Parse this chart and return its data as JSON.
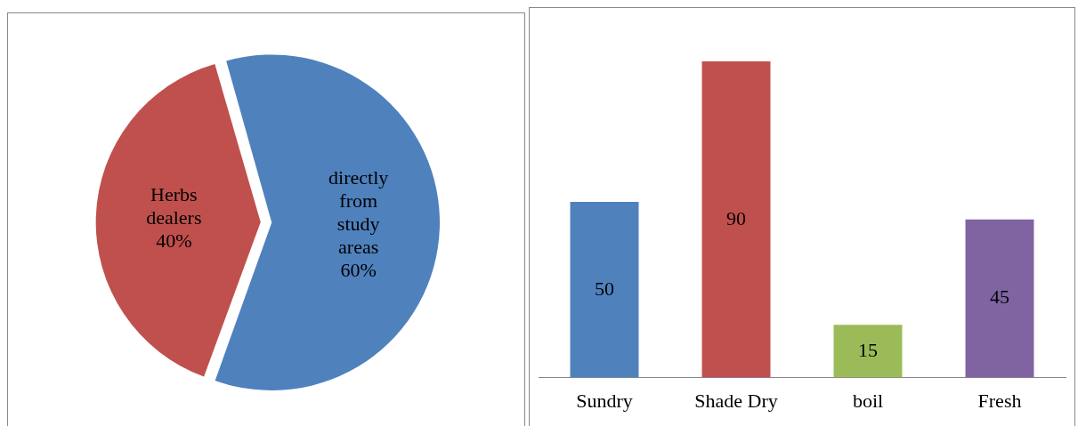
{
  "chart_data": [
    {
      "type": "pie",
      "categories": [
        "Herbs dealers",
        "directly from study areas"
      ],
      "values": [
        40,
        60
      ],
      "colors": [
        "#c0504d",
        "#4f81bd"
      ],
      "value_labels": [
        "40%",
        "60%"
      ],
      "legend": false
    },
    {
      "type": "bar",
      "categories": [
        "Sundry",
        "Shade Dry",
        "boil",
        "Fresh"
      ],
      "values": [
        50,
        90,
        15,
        45
      ],
      "colors": [
        "#4f81bd",
        "#c0504d",
        "#9bbb59",
        "#8064a2"
      ],
      "tick_labels": "x",
      "data_labels": true,
      "legend": false
    }
  ]
}
